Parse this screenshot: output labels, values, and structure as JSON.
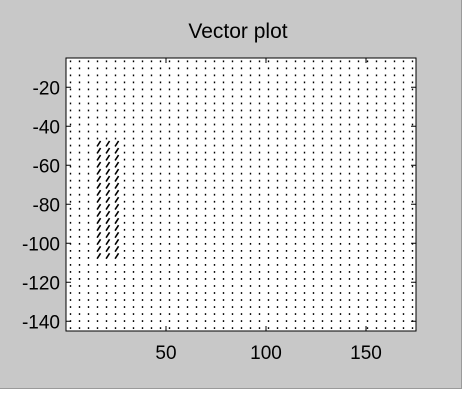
{
  "figure": {
    "background": "#c8c8c8",
    "axes_background": "#ffffff",
    "foreground": "#000000"
  },
  "chart_data": {
    "type": "quiver",
    "title": "Vector plot",
    "xlabel": "",
    "ylabel": "",
    "xlim": [
      0,
      175
    ],
    "ylim": [
      -145,
      -5
    ],
    "x_ticks": [
      50,
      100,
      150
    ],
    "x_tick_labels": [
      "50",
      "100",
      "150"
    ],
    "y_ticks": [
      -20,
      -40,
      -60,
      -80,
      -100,
      -120,
      -140
    ],
    "y_tick_labels": [
      "-20",
      "-40",
      "-60",
      "-80",
      "-100",
      "-120",
      "-140"
    ],
    "grid": false,
    "legend": "none",
    "grid_spacing": {
      "dx": 4.5,
      "dy": 3.6
    },
    "background_vector": {
      "u": 0,
      "v": 0.3
    },
    "strong_region": {
      "description": "",
      "x_range": [
        15,
        28
      ],
      "y_range": [
        -108,
        -47
      ],
      "vector": {
        "u": 2.2,
        "v": 3.4
      }
    }
  }
}
